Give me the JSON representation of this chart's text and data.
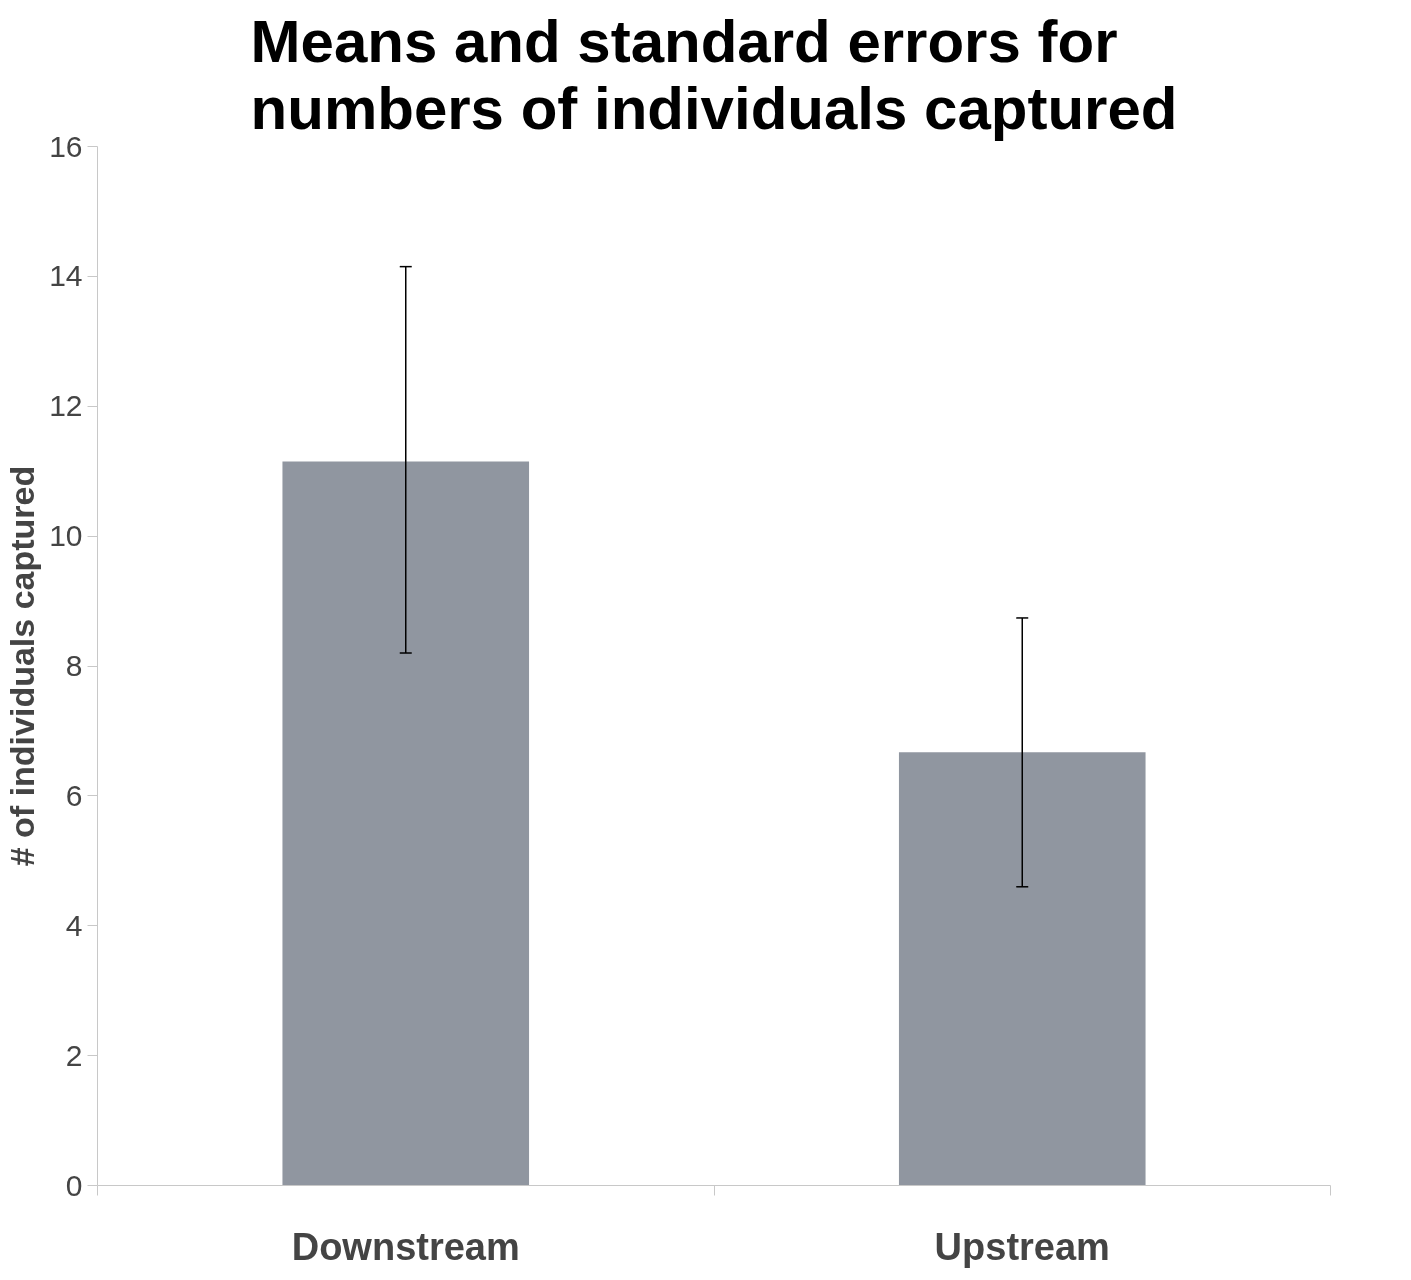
{
  "chart_data": {
    "type": "bar",
    "title": "Means and standard errors for numbers of individuals captured",
    "ylabel": "# of individuals captured",
    "categories": [
      "Downstream",
      "Upstream"
    ],
    "series": [
      {
        "color": "#9096a0",
        "values": [
          11.15,
          6.67
        ],
        "errors": [
          [
            8.2,
            14.15
          ],
          [
            4.6,
            8.74
          ]
        ]
      }
    ],
    "ylim": [
      0,
      16
    ],
    "yticks": [
      0,
      2,
      4,
      6,
      8,
      10,
      12,
      14,
      16
    ],
    "grid": false
  }
}
